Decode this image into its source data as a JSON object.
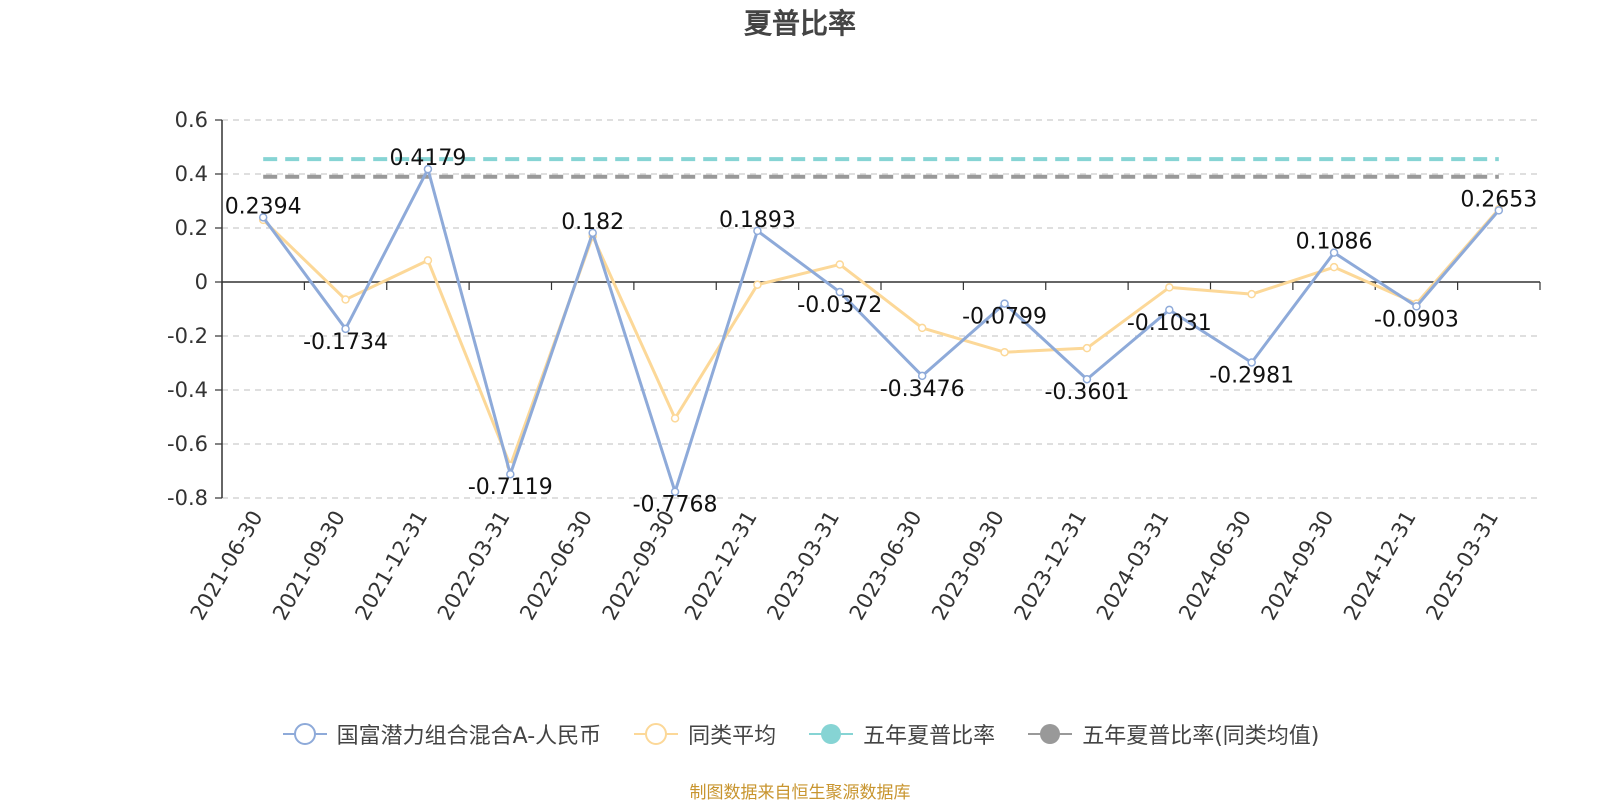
{
  "chart_data": {
    "type": "line",
    "title": "夏普比率",
    "categories": [
      "2021-06-30",
      "2021-09-30",
      "2021-12-31",
      "2022-03-31",
      "2022-06-30",
      "2022-09-30",
      "2022-12-31",
      "2023-03-31",
      "2023-06-30",
      "2023-09-30",
      "2023-12-31",
      "2024-03-31",
      "2024-06-30",
      "2024-09-30",
      "2024-12-31",
      "2025-03-31"
    ],
    "series": [
      {
        "name": "国富潜力组合混合A-人民币",
        "color": "#8eaad9",
        "values": [
          0.2394,
          -0.1734,
          0.4179,
          -0.7119,
          0.182,
          -0.7768,
          0.1893,
          -0.0372,
          -0.3476,
          -0.0799,
          -0.3601,
          -0.1031,
          -0.2981,
          0.1086,
          -0.0903,
          0.2653
        ],
        "data_labels": [
          "0.2394",
          "-0.1734",
          "0.4179",
          "-0.7119",
          "0.182",
          "-0.7768",
          "0.1893",
          "-0.0372",
          "-0.3476",
          "-0.0799",
          "-0.3601",
          "-0.1031",
          "-0.2981",
          "0.1086",
          "-0.0903",
          "0.2653"
        ]
      },
      {
        "name": "同类平均",
        "color": "#fcd898",
        "values": [
          0.23,
          -0.065,
          0.08,
          -0.68,
          0.17,
          -0.505,
          -0.01,
          0.065,
          -0.17,
          -0.26,
          -0.245,
          -0.02,
          -0.045,
          0.055,
          -0.08,
          0.27
        ]
      },
      {
        "name": "五年夏普比率",
        "color": "#86d4d4",
        "style": "dashed",
        "constant": 0.455
      },
      {
        "name": "五年夏普比率(同类均值)",
        "color": "#999999",
        "style": "dashed",
        "constant": 0.39
      }
    ],
    "ylim": [
      -0.8,
      0.6
    ],
    "y_ticks": [
      0.6,
      0.4,
      0.2,
      0,
      -0.2,
      -0.4,
      -0.6,
      -0.8
    ],
    "y_tick_labels": [
      "0.6",
      "0.4",
      "0.2",
      "0",
      "-0.2",
      "-0.4",
      "-0.6",
      "-0.8"
    ],
    "grid": "horizontal-dashed",
    "legend_position": "bottom"
  },
  "source_note": "制图数据来自恒生聚源数据库"
}
